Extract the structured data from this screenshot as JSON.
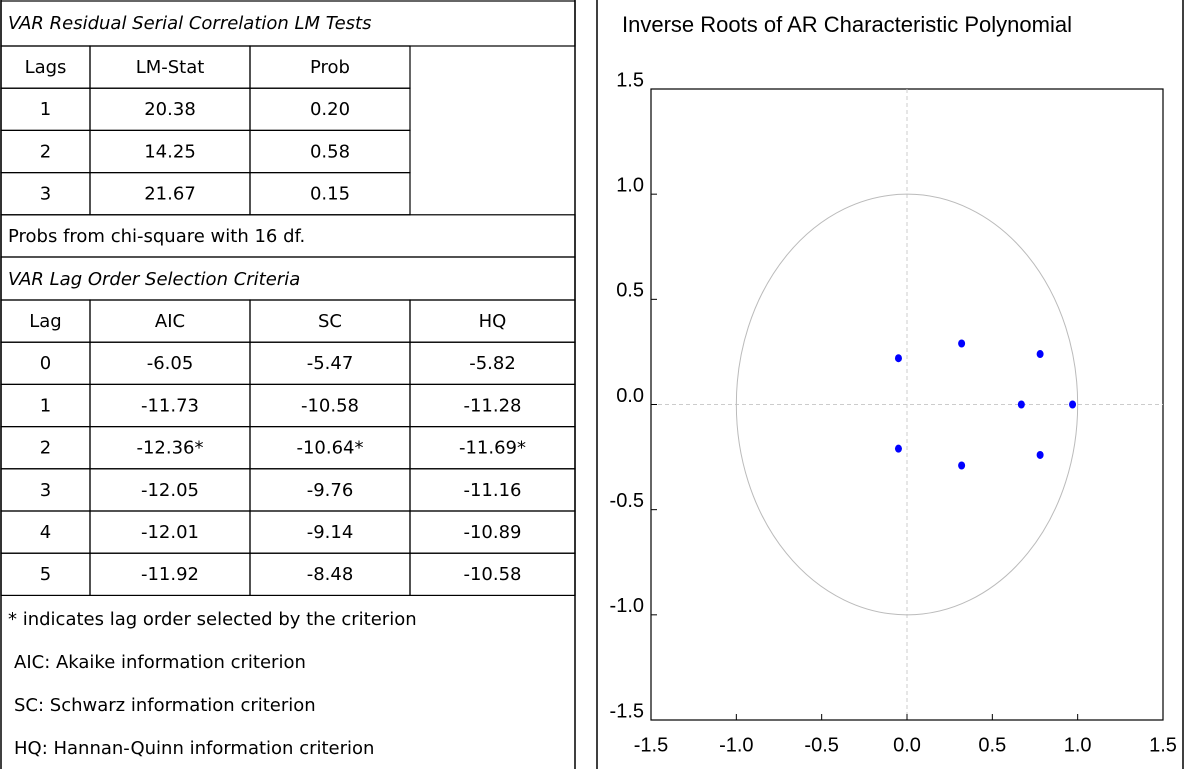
{
  "lm_table": {
    "title": "VAR Residual Serial Correlation LM Tests",
    "columns": [
      "Lags",
      "LM-Stat",
      "Prob"
    ],
    "rows": [
      [
        "1",
        "20.38",
        "0.20"
      ],
      [
        "2",
        "14.25",
        "0.58"
      ],
      [
        "3",
        "21.67",
        "0.15"
      ]
    ],
    "note": "Probs from chi-square with 16 df."
  },
  "lag_table": {
    "title": "VAR Lag Order Selection Criteria",
    "columns": [
      "Lag",
      "AIC",
      "SC",
      "HQ"
    ],
    "rows": [
      [
        "0",
        "-6.05",
        "-5.47",
        "-5.82"
      ],
      [
        "1",
        "-11.73",
        "-10.58",
        "-11.28"
      ],
      [
        "2",
        "-12.36*",
        "-10.64*",
        "-11.69*"
      ],
      [
        "3",
        "-12.05",
        "-9.76",
        "-11.16"
      ],
      [
        "4",
        "-12.01",
        "-9.14",
        "-10.89"
      ],
      [
        "5",
        "-11.92",
        "-8.48",
        "-10.58"
      ]
    ],
    "notes": [
      "* indicates lag order selected by the criterion",
      "AIC: Akaike information criterion",
      "SC: Schwarz information criterion",
      "HQ: Hannan-Quinn information criterion"
    ]
  },
  "chart_data": {
    "type": "scatter",
    "title": "Inverse Roots of AR Characteristic Polynomial",
    "x": [
      -0.05,
      0.32,
      0.78,
      0.67,
      0.97,
      -0.05,
      0.32,
      0.78
    ],
    "values": [
      0.22,
      0.29,
      0.24,
      0.0,
      0.0,
      -0.21,
      -0.29,
      -0.24
    ],
    "color": "#0000ff",
    "xlim": [
      -1.5,
      1.5
    ],
    "ylim": [
      -1.5,
      1.5
    ],
    "xticks": [
      -1.5,
      {
        "value": -1.0,
        "label": "-1.0"
      },
      -0.5,
      {
        "value": 0.0,
        "label": "0.0"
      },
      0.5,
      {
        "value": 1.0,
        "label": "1.0"
      },
      1.5
    ],
    "yticks": [
      -1.5,
      {
        "value": -1.0,
        "label": "-1.0"
      },
      -0.5,
      {
        "value": 0.0,
        "label": "0.0"
      },
      0.5,
      {
        "value": 1.0,
        "label": "1.0"
      },
      1.5
    ],
    "unit_circle": true,
    "zero_lines": true
  }
}
